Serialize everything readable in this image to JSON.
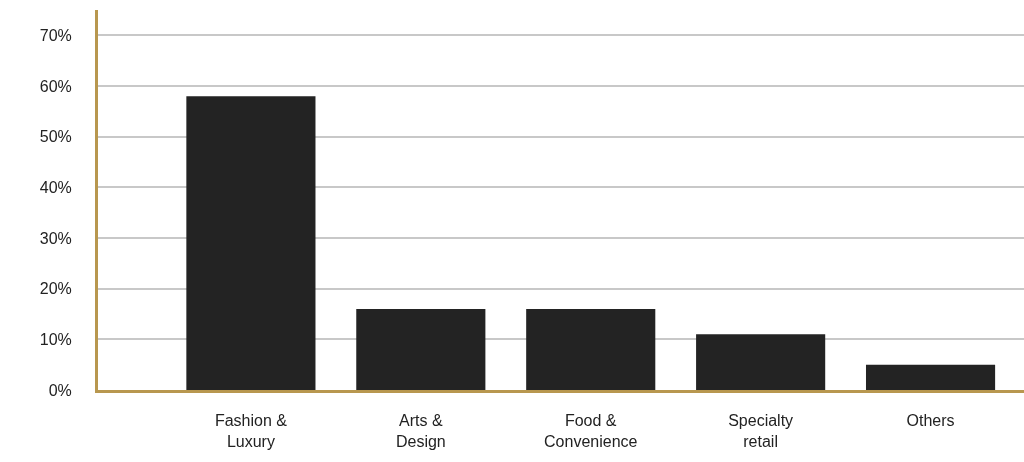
{
  "chart_data": {
    "type": "bar",
    "categories": [
      "Fashion &\nLuxury",
      "Arts &\nDesign",
      "Food &\nConvenience",
      "Specialty\nretail",
      "Others"
    ],
    "values": [
      58,
      16,
      16,
      11,
      5
    ],
    "color": "#232323",
    "ylim": [
      0,
      75
    ],
    "yticks": [
      {
        "value": 0,
        "label": "0%"
      },
      {
        "value": 10,
        "label": "10%"
      },
      {
        "value": 20,
        "label": "20%"
      },
      {
        "value": 30,
        "label": "30%"
      },
      {
        "value": 40,
        "label": "40%"
      },
      {
        "value": 50,
        "label": "50%"
      },
      {
        "value": 60,
        "label": "60%"
      },
      {
        "value": 70,
        "label": "70%"
      }
    ],
    "grid": "y"
  }
}
